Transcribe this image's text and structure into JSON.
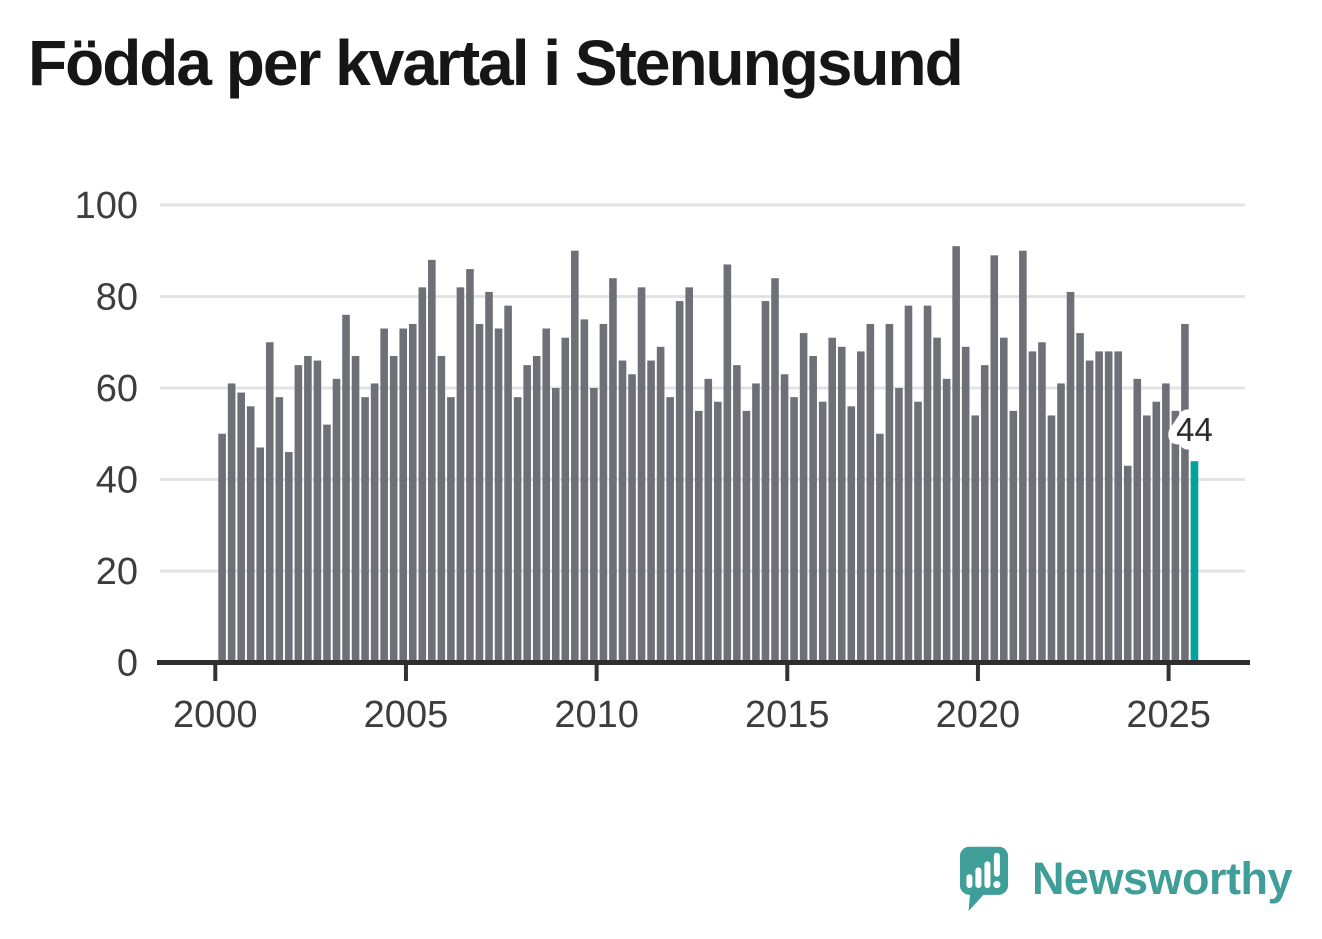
{
  "title": "Födda per kvartal i Stenungsund",
  "branding": {
    "wordmark": "Newsworthy",
    "logo_icon": "newsworthy-speech-bubble-chart-icon",
    "brand_color": "#3f9e98"
  },
  "chart_data": {
    "type": "bar",
    "title": "Födda per kvartal i Stenungsund",
    "xlabel": "",
    "ylabel": "",
    "x_unit": "quarter",
    "start_period": "2000-Q1",
    "end_period": "2025-Q3",
    "x_tick_labels": [
      "2000",
      "2005",
      "2010",
      "2015",
      "2020",
      "2025"
    ],
    "y_ticks": [
      0,
      20,
      40,
      60,
      80,
      100
    ],
    "ylim": [
      0,
      100
    ],
    "grid": "horizontal",
    "legend": "none",
    "bar_color": "#6f6f78",
    "highlight_color": "#00a29e",
    "highlight_index": 102,
    "highlight_label": "44",
    "values": [
      50,
      61,
      59,
      56,
      47,
      70,
      58,
      46,
      65,
      67,
      66,
      52,
      62,
      76,
      67,
      58,
      61,
      73,
      67,
      73,
      74,
      82,
      88,
      67,
      58,
      82,
      86,
      74,
      81,
      73,
      78,
      58,
      65,
      67,
      73,
      60,
      71,
      90,
      75,
      60,
      74,
      84,
      66,
      63,
      82,
      66,
      69,
      58,
      79,
      82,
      55,
      62,
      57,
      87,
      65,
      55,
      61,
      79,
      84,
      63,
      58,
      72,
      67,
      57,
      71,
      69,
      56,
      68,
      74,
      50,
      74,
      60,
      78,
      57,
      78,
      71,
      62,
      91,
      69,
      54,
      65,
      89,
      71,
      55,
      90,
      68,
      70,
      54,
      61,
      81,
      72,
      66,
      68,
      68,
      68,
      43,
      62,
      54,
      57,
      61,
      55,
      74,
      44
    ]
  }
}
